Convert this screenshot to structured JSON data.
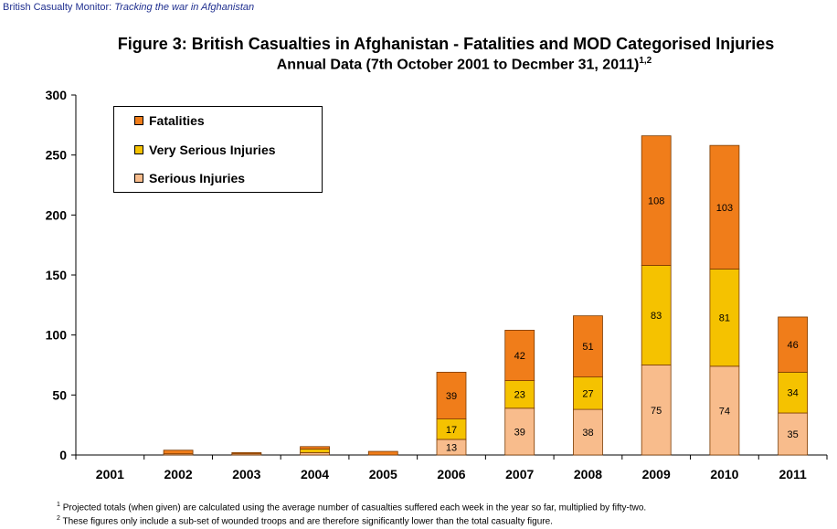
{
  "source": {
    "name": "British Casualty Monitor:",
    "tagline": "Tracking the war in Afghanistan"
  },
  "footnotes": [
    {
      "mark": "1",
      "text": "Projected totals (when given) are calculated using the average number of casualties suffered each week in the year so far, multiplied by fifty-two."
    },
    {
      "mark": "2",
      "text": "These figures only include a sub-set of wounded troops and are therefore significantly lower than the total casualty figure."
    }
  ],
  "chart_data": {
    "type": "bar",
    "stacked": true,
    "title": "Figure 3: British Casualties in Afghanistan - Fatalities and MOD Categorised Injuries",
    "subtitle": "Annual Data (7th October 2001 to Decmber 31, 2011)",
    "subtitle_sup": "1,2",
    "categories": [
      "2001",
      "2002",
      "2003",
      "2004",
      "2005",
      "2006",
      "2007",
      "2008",
      "2009",
      "2010",
      "2011"
    ],
    "series": [
      {
        "name": "Serious Injuries",
        "color": "#F8BC8C",
        "values": [
          0,
          1,
          1,
          2,
          0,
          13,
          39,
          38,
          75,
          74,
          35
        ],
        "labels": [
          "",
          "",
          "",
          "",
          "",
          "13",
          "39",
          "38",
          "75",
          "74",
          "35"
        ]
      },
      {
        "name": "Very Serious Injuries",
        "color": "#F5C200",
        "values": [
          0,
          0,
          0,
          3,
          0,
          17,
          23,
          27,
          83,
          81,
          34
        ],
        "labels": [
          "",
          "",
          "",
          "",
          "",
          "17",
          "23",
          "27",
          "83",
          "81",
          "34"
        ]
      },
      {
        "name": "Fatalities",
        "color": "#F07D1A",
        "values": [
          0,
          3,
          1,
          2,
          3,
          39,
          42,
          51,
          108,
          103,
          46
        ],
        "labels": [
          "",
          "",
          "",
          "",
          "",
          "39",
          "42",
          "51",
          "108",
          "103",
          "46"
        ]
      }
    ],
    "legend": {
      "position": "top-left",
      "order": [
        "Fatalities",
        "Very Serious Injuries",
        "Serious Injuries"
      ]
    },
    "yticks": [
      "0",
      "50",
      "100",
      "150",
      "200",
      "250",
      "300"
    ],
    "ylim": [
      0,
      300
    ],
    "grid": false,
    "xlabel": "",
    "ylabel": ""
  }
}
